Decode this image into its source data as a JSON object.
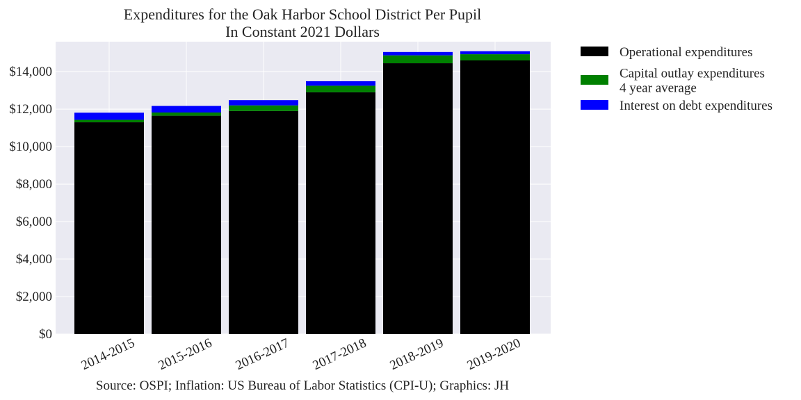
{
  "chart_data": {
    "type": "bar",
    "stacked": true,
    "title": "Expenditures for the Oak Harbor School District Per Pupil",
    "subtitle": "In Constant 2021 Dollars",
    "xlabel": "",
    "ylabel": "",
    "categories": [
      "2014-2015",
      "2015-2016",
      "2016-2017",
      "2017-2018",
      "2018-2019",
      "2019-2020"
    ],
    "series": [
      {
        "name": "Operational expenditures",
        "color": "#000000",
        "values": [
          11300,
          11650,
          11900,
          12900,
          14450,
          14600
        ]
      },
      {
        "name": "Capital outlay expenditures\n4 year average",
        "color": "#008000",
        "values": [
          130,
          170,
          300,
          350,
          420,
          330
        ]
      },
      {
        "name": "Interest on debt expenditures",
        "color": "#0000ff",
        "values": [
          380,
          350,
          280,
          240,
          180,
          160
        ]
      }
    ],
    "ylim": [
      0,
      15600
    ],
    "yticks": [
      0,
      2000,
      4000,
      6000,
      8000,
      10000,
      12000,
      14000
    ],
    "ytick_labels": [
      "$0",
      "$2,000",
      "$4,000",
      "$6,000",
      "$8,000",
      "$10,000",
      "$12,000",
      "$14,000"
    ],
    "grid": true,
    "legend_position": "outside-right",
    "background": "#eaeaf2",
    "source": "Source: OSPI; Inflation: US Bureau of Labor Statistics (CPI-U); Graphics: JH"
  }
}
